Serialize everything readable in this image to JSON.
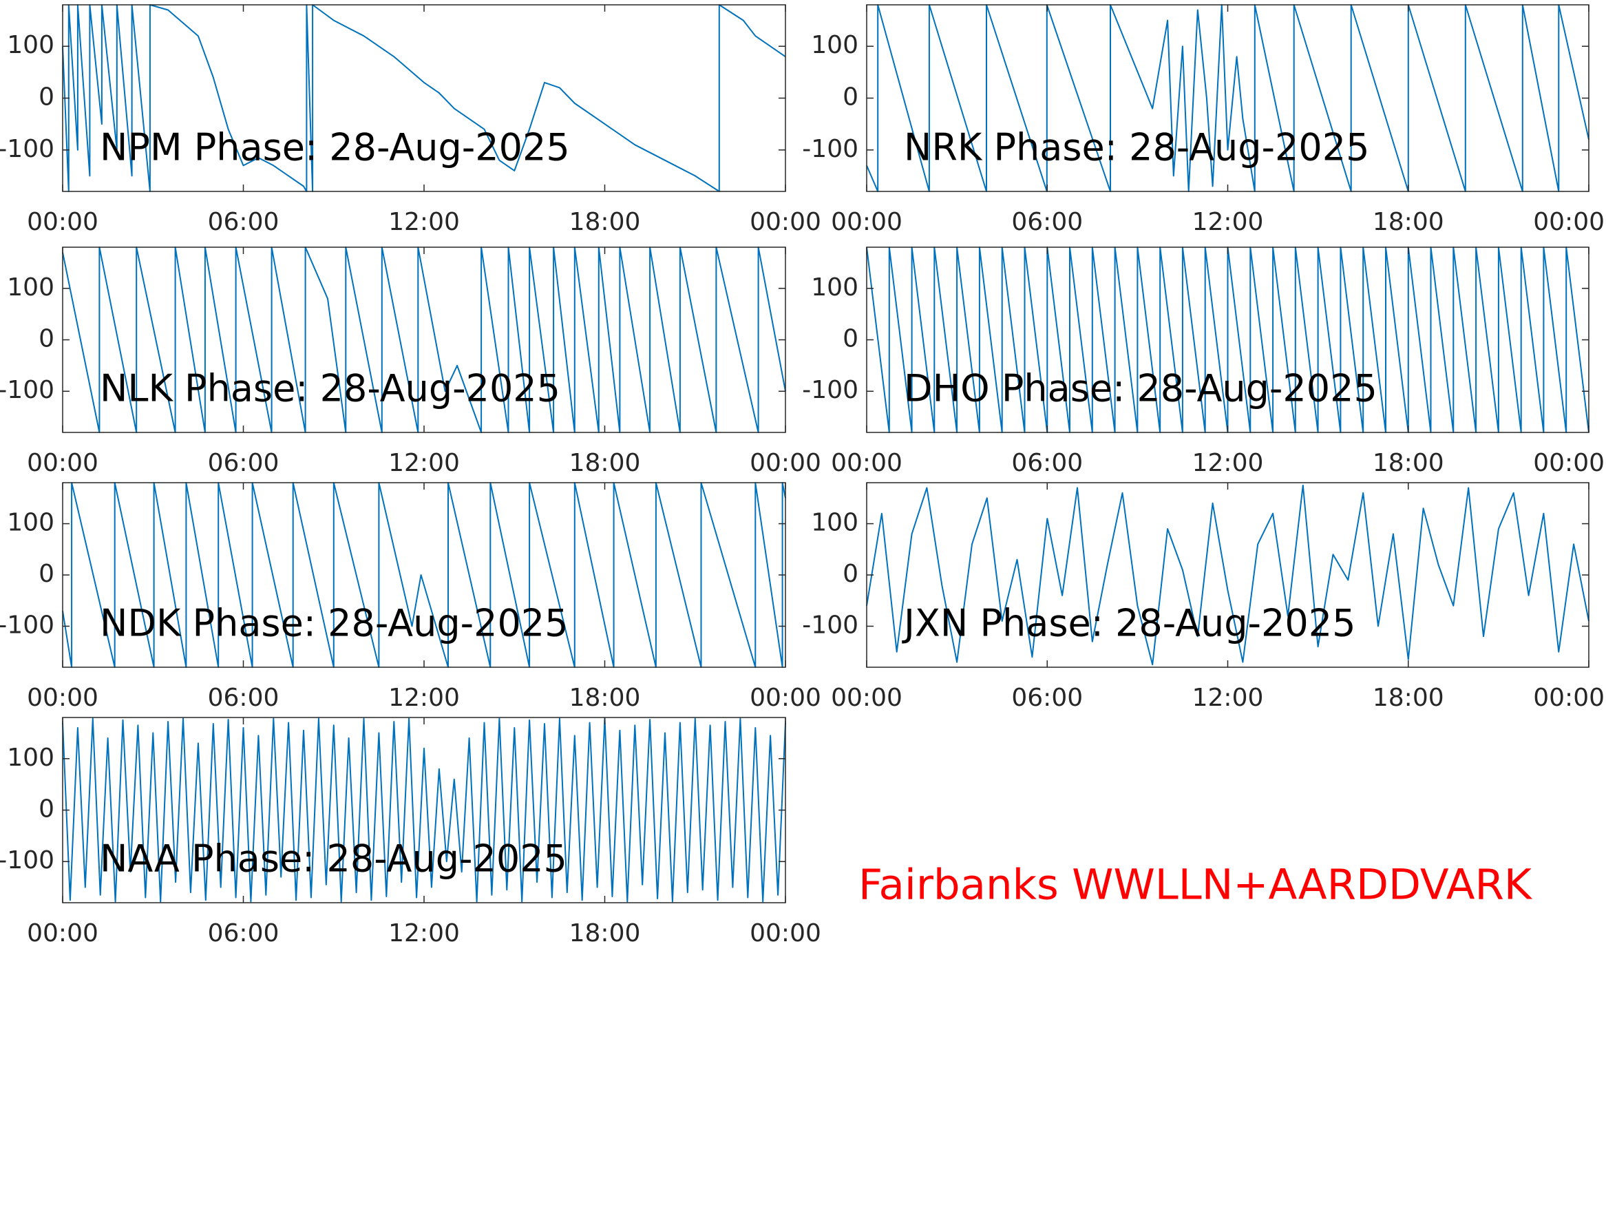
{
  "chart_data": [
    {
      "type": "line",
      "title": "NPM Phase: 28-Aug-2025",
      "color": "#0072bd",
      "x": [
        0,
        0.2,
        0.2,
        0.5,
        0.5,
        0.9,
        0.9,
        1.3,
        1.3,
        1.8,
        1.8,
        2.3,
        2.3,
        2.9,
        2.9,
        3.5,
        4.5,
        5,
        5.5,
        6,
        6.5,
        7,
        7.5,
        8,
        8.1,
        8.1,
        8.3,
        8.3,
        9,
        10,
        11,
        12,
        12.5,
        13,
        14,
        14.5,
        15,
        15.5,
        16,
        16.5,
        17,
        18,
        19,
        20,
        21,
        21.8,
        21.8,
        22.6,
        23,
        24
      ],
      "values": [
        100,
        -180,
        180,
        -100,
        180,
        -150,
        180,
        -50,
        180,
        -100,
        180,
        -150,
        180,
        -180,
        180,
        170,
        120,
        40,
        -60,
        -130,
        -115,
        -130,
        -150,
        -170,
        -180,
        180,
        -180,
        180,
        150,
        120,
        80,
        30,
        10,
        -20,
        -60,
        -120,
        -140,
        -60,
        30,
        20,
        -10,
        -50,
        -90,
        -120,
        -150,
        -180,
        180,
        150,
        120,
        80
      ],
      "xlim": [
        0,
        24
      ],
      "xticks": [
        {
          "value": 0,
          "label": "00:00"
        },
        {
          "value": 6,
          "label": "06:00"
        },
        {
          "value": 12,
          "label": "12:00"
        },
        {
          "value": 18,
          "label": "18:00"
        },
        {
          "value": 24,
          "label": "00:00"
        }
      ],
      "ylim": [
        -180,
        180
      ],
      "yticks": [
        -100,
        0,
        100
      ]
    },
    {
      "type": "line",
      "title": "NRK Phase: 28-Aug-2025",
      "color": "#0072bd",
      "x": [
        0,
        0.37,
        0.37,
        2.08,
        2.08,
        3.98,
        3.98,
        5.99,
        5.99,
        8.1,
        8.1,
        9.5,
        10,
        10.2,
        10.5,
        10.7,
        11,
        11.3,
        11.5,
        11.8,
        12,
        12.3,
        12.5,
        12.9,
        12.9,
        14.2,
        14.2,
        16.1,
        16.1,
        18,
        18,
        19.9,
        19.9,
        21.8,
        21.8,
        23,
        23,
        24
      ],
      "values": [
        -130,
        -180,
        180,
        -180,
        180,
        -180,
        180,
        -180,
        180,
        -180,
        180,
        -20,
        150,
        -150,
        100,
        -180,
        170,
        0,
        -170,
        180,
        -100,
        80,
        -40,
        -180,
        180,
        -180,
        180,
        -180,
        180,
        -180,
        180,
        -180,
        180,
        -180,
        180,
        -180,
        180,
        -80
      ],
      "xlim": [
        0,
        24
      ],
      "xticks": [
        {
          "value": 0,
          "label": "00:00"
        },
        {
          "value": 6,
          "label": "06:00"
        },
        {
          "value": 12,
          "label": "12:00"
        },
        {
          "value": 18,
          "label": "18:00"
        },
        {
          "value": 24,
          "label": "00:00"
        }
      ],
      "ylim": [
        -180,
        180
      ],
      "yticks": [
        -100,
        0,
        100
      ]
    },
    {
      "type": "line",
      "title": "NLK Phase: 28-Aug-2025",
      "color": "#0072bd",
      "x": [
        0,
        1.22,
        1.22,
        2.45,
        2.45,
        3.74,
        3.74,
        4.73,
        4.73,
        5.75,
        5.75,
        6.94,
        6.94,
        8.06,
        8.06,
        8.8,
        9.4,
        9.4,
        10.6,
        10.6,
        11.8,
        11.8,
        12.7,
        13.1,
        13.9,
        13.9,
        14.8,
        14.8,
        15.5,
        15.5,
        16.3,
        16.3,
        17,
        17,
        17.8,
        17.8,
        18.5,
        18.5,
        19.5,
        19.5,
        20.5,
        20.5,
        21.7,
        21.7,
        23.1,
        23.1,
        24
      ],
      "values": [
        170,
        -180,
        180,
        -180,
        180,
        -180,
        180,
        -180,
        180,
        -180,
        180,
        -180,
        180,
        -180,
        180,
        80,
        -180,
        180,
        -180,
        180,
        -180,
        180,
        -100,
        -50,
        -180,
        180,
        -180,
        180,
        -180,
        180,
        -180,
        180,
        -180,
        180,
        -180,
        180,
        -180,
        180,
        -180,
        180,
        -180,
        180,
        -180,
        180,
        -180,
        180,
        -100
      ],
      "xlim": [
        0,
        24
      ],
      "xticks": [
        {
          "value": 0,
          "label": "00:00"
        },
        {
          "value": 6,
          "label": "06:00"
        },
        {
          "value": 12,
          "label": "12:00"
        },
        {
          "value": 18,
          "label": "18:00"
        },
        {
          "value": 24,
          "label": "00:00"
        }
      ],
      "ylim": [
        -180,
        180
      ],
      "yticks": [
        -100,
        0,
        100
      ]
    },
    {
      "type": "line",
      "title": "DHO Phase: 28-Aug-2025",
      "color": "#0072bd",
      "x": [
        0,
        0.75,
        0.75,
        1.5,
        1.5,
        2.25,
        2.25,
        3,
        3,
        3.75,
        3.75,
        4.5,
        4.5,
        5.25,
        5.25,
        6,
        6,
        6.75,
        6.75,
        7.5,
        7.5,
        8.25,
        8.25,
        9,
        9,
        9.75,
        9.75,
        10.5,
        10.5,
        11.25,
        11.25,
        12,
        12,
        12.75,
        12.75,
        13.5,
        13.5,
        14.25,
        14.25,
        15,
        15,
        15.75,
        15.75,
        16.5,
        16.5,
        17.25,
        17.25,
        18,
        18,
        18.75,
        18.75,
        19.5,
        19.5,
        20.25,
        20.25,
        21,
        21,
        21.75,
        21.75,
        22.5,
        22.5,
        23.25,
        23.25,
        24
      ],
      "values": [
        180,
        -180,
        180,
        -180,
        180,
        -180,
        180,
        -180,
        180,
        -180,
        180,
        -180,
        180,
        -180,
        180,
        -180,
        180,
        -180,
        180,
        -180,
        180,
        -180,
        180,
        -180,
        180,
        -180,
        180,
        -180,
        180,
        -180,
        180,
        -180,
        180,
        -180,
        180,
        -180,
        180,
        -180,
        180,
        -180,
        180,
        -180,
        180,
        -180,
        180,
        -180,
        180,
        -180,
        180,
        -180,
        180,
        -180,
        180,
        -180,
        180,
        -180,
        180,
        -180,
        180,
        -180,
        180,
        -180,
        180,
        -180
      ],
      "xlim": [
        0,
        24
      ],
      "xticks": [
        {
          "value": 0,
          "label": "00:00"
        },
        {
          "value": 6,
          "label": "06:00"
        },
        {
          "value": 12,
          "label": "12:00"
        },
        {
          "value": 18,
          "label": "18:00"
        },
        {
          "value": 24,
          "label": "00:00"
        }
      ],
      "ylim": [
        -180,
        180
      ],
      "yticks": [
        -100,
        0,
        100
      ]
    },
    {
      "type": "line",
      "title": "NDK Phase: 28-Aug-2025",
      "color": "#0072bd",
      "x": [
        0,
        0.3,
        0.3,
        1.73,
        1.73,
        3.03,
        3.03,
        4.1,
        4.1,
        5.17,
        5.17,
        6.3,
        6.3,
        7.65,
        7.65,
        9,
        9,
        10.5,
        10.5,
        11.6,
        11.9,
        12.8,
        12.8,
        14.2,
        14.2,
        15.5,
        15.5,
        17,
        17,
        18.3,
        18.3,
        19.7,
        19.7,
        21.2,
        21.2,
        23,
        23,
        23.9,
        23.9,
        24
      ],
      "values": [
        -70,
        -180,
        180,
        -180,
        180,
        -180,
        180,
        -180,
        180,
        -180,
        180,
        -180,
        180,
        -180,
        180,
        -180,
        180,
        -180,
        180,
        -100,
        0,
        -180,
        180,
        -180,
        180,
        -180,
        180,
        -180,
        180,
        -180,
        180,
        -180,
        180,
        -180,
        180,
        -180,
        180,
        -180,
        180,
        150
      ],
      "xlim": [
        0,
        24
      ],
      "xticks": [
        {
          "value": 0,
          "label": "00:00"
        },
        {
          "value": 6,
          "label": "06:00"
        },
        {
          "value": 12,
          "label": "12:00"
        },
        {
          "value": 18,
          "label": "18:00"
        },
        {
          "value": 24,
          "label": "00:00"
        }
      ],
      "ylim": [
        -180,
        180
      ],
      "yticks": [
        -100,
        0,
        100
      ]
    },
    {
      "type": "line",
      "title": "JXN Phase: 28-Aug-2025",
      "color": "#0072bd",
      "x": [
        0,
        0.5,
        1,
        1.5,
        2,
        2.5,
        3,
        3.5,
        4,
        4.5,
        5,
        5.5,
        6,
        6.5,
        7,
        7.5,
        8,
        8.5,
        9,
        9.5,
        10,
        10.5,
        11,
        11.5,
        12,
        12.5,
        13,
        13.5,
        14,
        14.5,
        15,
        15.5,
        16,
        16.5,
        17,
        17.5,
        18,
        18.5,
        19,
        19.5,
        20,
        20.5,
        21,
        21.5,
        22,
        22.5,
        23,
        23.5,
        24
      ],
      "values": [
        -60,
        120,
        -150,
        80,
        170,
        -20,
        -170,
        60,
        150,
        -90,
        30,
        -160,
        110,
        -40,
        170,
        -130,
        20,
        160,
        -60,
        -175,
        90,
        10,
        -120,
        140,
        -30,
        -170,
        60,
        120,
        -80,
        175,
        -140,
        40,
        -10,
        160,
        -100,
        80,
        -165,
        130,
        20,
        -60,
        170,
        -120,
        90,
        160,
        -40,
        120,
        -150,
        60,
        -90
      ],
      "xlim": [
        0,
        24
      ],
      "xticks": [
        {
          "value": 0,
          "label": "00:00"
        },
        {
          "value": 6,
          "label": "06:00"
        },
        {
          "value": 12,
          "label": "12:00"
        },
        {
          "value": 18,
          "label": "18:00"
        },
        {
          "value": 24,
          "label": "00:00"
        }
      ],
      "ylim": [
        -180,
        180
      ],
      "yticks": [
        -100,
        0,
        100
      ]
    },
    {
      "type": "line",
      "title": "NAA Phase: 28-Aug-2025",
      "color": "#0072bd",
      "x": [
        0,
        0.25,
        0.5,
        0.75,
        1,
        1.25,
        1.5,
        1.75,
        2,
        2.25,
        2.5,
        2.75,
        3,
        3.25,
        3.5,
        3.75,
        4,
        4.25,
        4.5,
        4.75,
        5,
        5.25,
        5.5,
        5.75,
        6,
        6.25,
        6.5,
        6.75,
        7,
        7.25,
        7.5,
        7.75,
        8,
        8.25,
        8.5,
        8.75,
        9,
        9.25,
        9.5,
        9.75,
        10,
        10.25,
        10.5,
        10.75,
        11,
        11.25,
        11.5,
        11.75,
        12,
        12.25,
        12.5,
        12.75,
        13,
        13.25,
        13.5,
        13.75,
        14,
        14.25,
        14.5,
        14.75,
        15,
        15.25,
        15.5,
        15.75,
        16,
        16.25,
        16.5,
        16.75,
        17,
        17.25,
        17.5,
        17.75,
        18,
        18.25,
        18.5,
        18.75,
        19,
        19.25,
        19.5,
        19.75,
        20,
        20.25,
        20.5,
        20.75,
        21,
        21.25,
        21.5,
        21.75,
        22,
        22.25,
        22.5,
        22.75,
        23,
        23.25,
        23.5,
        23.75,
        24
      ],
      "values": [
        170,
        -175,
        160,
        -150,
        178,
        -165,
        140,
        -178,
        175,
        -120,
        165,
        -170,
        150,
        -178,
        172,
        -140,
        178,
        -160,
        130,
        -175,
        168,
        -150,
        176,
        -170,
        160,
        -178,
        145,
        -165,
        178,
        -130,
        170,
        -175,
        155,
        -170,
        178,
        -145,
        165,
        -178,
        140,
        -160,
        178,
        -175,
        150,
        -168,
        172,
        -140,
        178,
        -170,
        120,
        -150,
        80,
        -100,
        60,
        -120,
        140,
        -178,
        170,
        -165,
        178,
        -155,
        160,
        -178,
        175,
        -140,
        168,
        -170,
        178,
        -160,
        145,
        -175,
        170,
        -150,
        178,
        -168,
        155,
        -178,
        165,
        -145,
        176,
        -172,
        150,
        -178,
        170,
        -160,
        178,
        -155,
        165,
        -175,
        172,
        -150,
        178,
        -170,
        160,
        -178,
        145,
        -165,
        170
      ],
      "xlim": [
        0,
        24
      ],
      "xticks": [
        {
          "value": 0,
          "label": "00:00"
        },
        {
          "value": 6,
          "label": "06:00"
        },
        {
          "value": 12,
          "label": "12:00"
        },
        {
          "value": 18,
          "label": "18:00"
        },
        {
          "value": 24,
          "label": "00:00"
        }
      ],
      "ylim": [
        -180,
        180
      ],
      "yticks": [
        -100,
        0,
        100
      ]
    }
  ],
  "annotation": "Fairbanks WWLLN+AARDDVARK"
}
